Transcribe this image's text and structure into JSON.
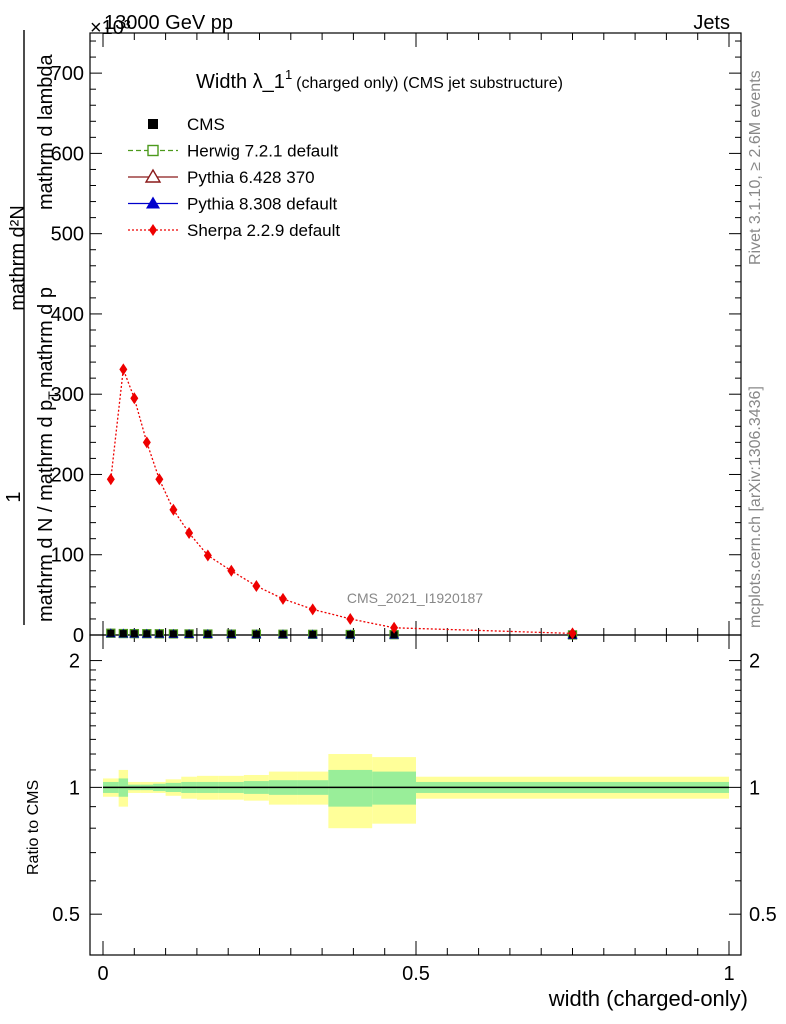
{
  "header": {
    "energy": "13000 GeV pp",
    "process": "Jets",
    "exponent": "×10³"
  },
  "side": {
    "rivet": "Rivet 3.1.10, ≥ 2.6M events",
    "mcplots": "mcplots.cern.ch [arXiv:1306.3436]"
  },
  "watermark": "CMS_2021_I1920187",
  "chart_data": {
    "type": "line",
    "title_main": "Width λ_1",
    "title_sup": "1",
    "title_sub": "(charged only) (CMS jet substructure)",
    "ylabel_num": "1",
    "ylabel_den": "mathrm d N / mathrm d p",
    "ylabel_den_tail": "mathrm d p",
    "ylabel_den_tail2": "mathrm d lambda",
    "ylabel_den_sub": "T",
    "ylabel_num_top": "mathrm d²N",
    "xlabel": "width (charged-only)",
    "ratio_ylabel": "Ratio to CMS",
    "xlim": [
      0,
      1
    ],
    "ylim": [
      0,
      750
    ],
    "yticks": [
      0,
      100,
      200,
      300,
      400,
      500,
      600,
      700
    ],
    "xticks": [
      0,
      0.5,
      1
    ],
    "xtick_labels": [
      "0",
      "0.5",
      "1"
    ],
    "ratio_ylim": [
      0.4,
      2.3
    ],
    "ratio_yticks": [
      0.5,
      1,
      2
    ],
    "ratio_ytick_labels": [
      "0.5",
      "1",
      "2"
    ],
    "legend_placement": "top-left",
    "legend": [
      {
        "name": "CMS",
        "color": "#000000",
        "marker": "square-filled",
        "line": "none"
      },
      {
        "name": "Herwig 7.2.1 default",
        "color": "#4c9a1c",
        "marker": "square-open",
        "line": "dashed"
      },
      {
        "name": "Pythia 6.428 370",
        "color": "#8b1a1a",
        "marker": "triangle-open",
        "line": "solid"
      },
      {
        "name": "Pythia 8.308 default",
        "color": "#0000cc",
        "marker": "triangle-filled",
        "line": "solid"
      },
      {
        "name": "Sherpa 2.2.9 default",
        "color": "#ee0000",
        "marker": "diamond-filled",
        "line": "dotted"
      }
    ],
    "bin_edges": [
      0,
      0.025,
      0.04,
      0.06,
      0.08,
      0.1,
      0.125,
      0.15,
      0.185,
      0.225,
      0.265,
      0.31,
      0.36,
      0.43,
      0.5,
      1.0
    ],
    "x": [
      0.0125,
      0.0325,
      0.05,
      0.07,
      0.09,
      0.1125,
      0.1375,
      0.1675,
      0.205,
      0.245,
      0.2875,
      0.335,
      0.395,
      0.465,
      0.75
    ],
    "series": [
      {
        "name": "CMS",
        "values": [
          2.2,
          1.8,
          1.7,
          1.6,
          1.5,
          1.4,
          1.3,
          1.2,
          1.1,
          1.0,
          0.9,
          0.8,
          0.6,
          0.4,
          0.1
        ]
      },
      {
        "name": "Sherpa 2.2.9 default",
        "values": [
          194,
          331,
          295,
          240,
          194,
          156,
          127,
          99,
          80,
          61,
          45,
          32,
          20,
          9,
          2
        ]
      }
    ],
    "ratio_bands": {
      "inner": [
        0.03,
        0.05,
        0.015,
        0.015,
        0.02,
        0.025,
        0.03,
        0.03,
        0.03,
        0.035,
        0.04,
        0.04,
        0.1,
        0.09,
        0.03
      ],
      "outer": [
        0.05,
        0.1,
        0.03,
        0.03,
        0.03,
        0.045,
        0.06,
        0.065,
        0.065,
        0.07,
        0.09,
        0.09,
        0.2,
        0.18,
        0.06
      ]
    }
  }
}
